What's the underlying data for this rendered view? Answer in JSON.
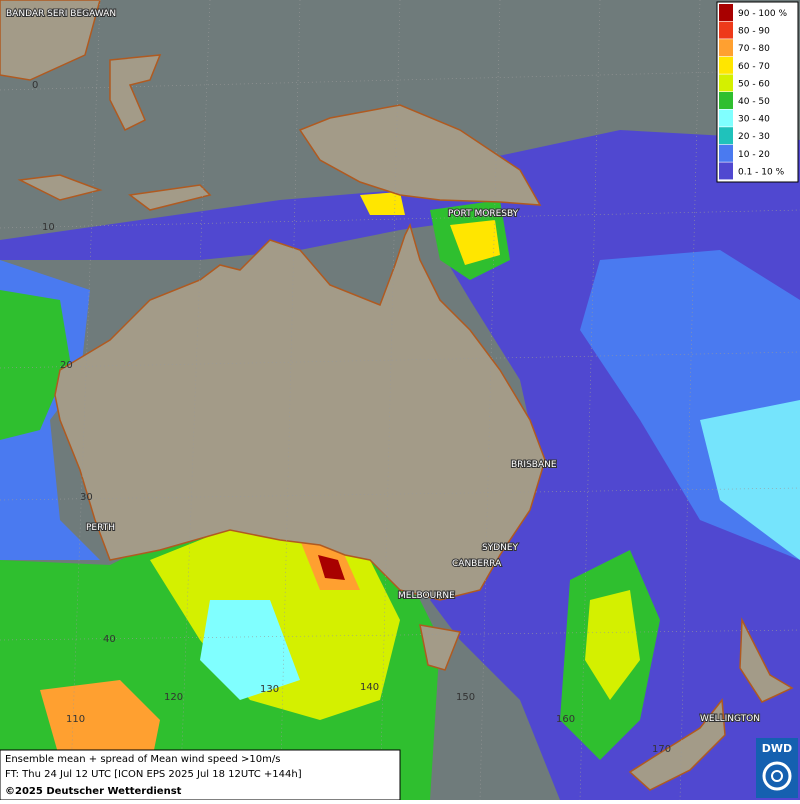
{
  "legend": [
    {
      "label": "90 - 100 %",
      "color": "#a80000"
    },
    {
      "label": "80 - 90",
      "color": "#ee3a1a"
    },
    {
      "label": "70 - 80",
      "color": "#ffa030"
    },
    {
      "label": "60 - 70",
      "color": "#ffe600"
    },
    {
      "label": "50 - 60",
      "color": "#d4f000"
    },
    {
      "label": "40 - 50",
      "color": "#2fbf2f"
    },
    {
      "label": "30 - 40",
      "color": "#80ffff"
    },
    {
      "label": "20 - 30",
      "color": "#1fc2bb"
    },
    {
      "label": "10 - 20",
      "color": "#4a7af0"
    },
    {
      "label": "0.1 - 10 %",
      "color": "#5048d0"
    }
  ],
  "cities": [
    "BANDAR SERI BEGAWAN",
    "PORT MORESBY",
    "BRISBANE",
    "PERTH",
    "SYDNEY",
    "CANBERRA",
    "MELBOURNE",
    "WELLINGTON"
  ],
  "latitude_labels": [
    "0",
    "10",
    "20",
    "30",
    "40"
  ],
  "longitude_labels": [
    "110",
    "120",
    "130",
    "140",
    "150",
    "160",
    "170"
  ],
  "caption": {
    "line1": "Ensemble mean + spread of Mean wind speed >10m/s",
    "line2": "FT: Thu 24 Jul 12 UTC [ICON EPS 2025 Jul 18 12UTC +144h]",
    "copyright": "©2025 Deutscher Wetterdienst"
  },
  "logo": "DWD"
}
